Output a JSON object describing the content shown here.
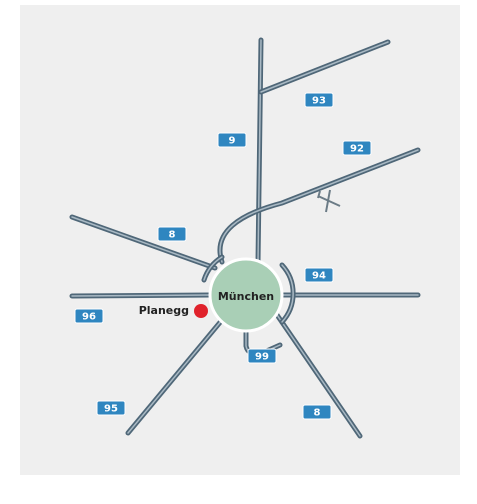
{
  "city": "München",
  "place": "Planegg",
  "shields": [
    "93",
    "9",
    "92",
    "8",
    "94",
    "96",
    "99",
    "95",
    "8"
  ]
}
